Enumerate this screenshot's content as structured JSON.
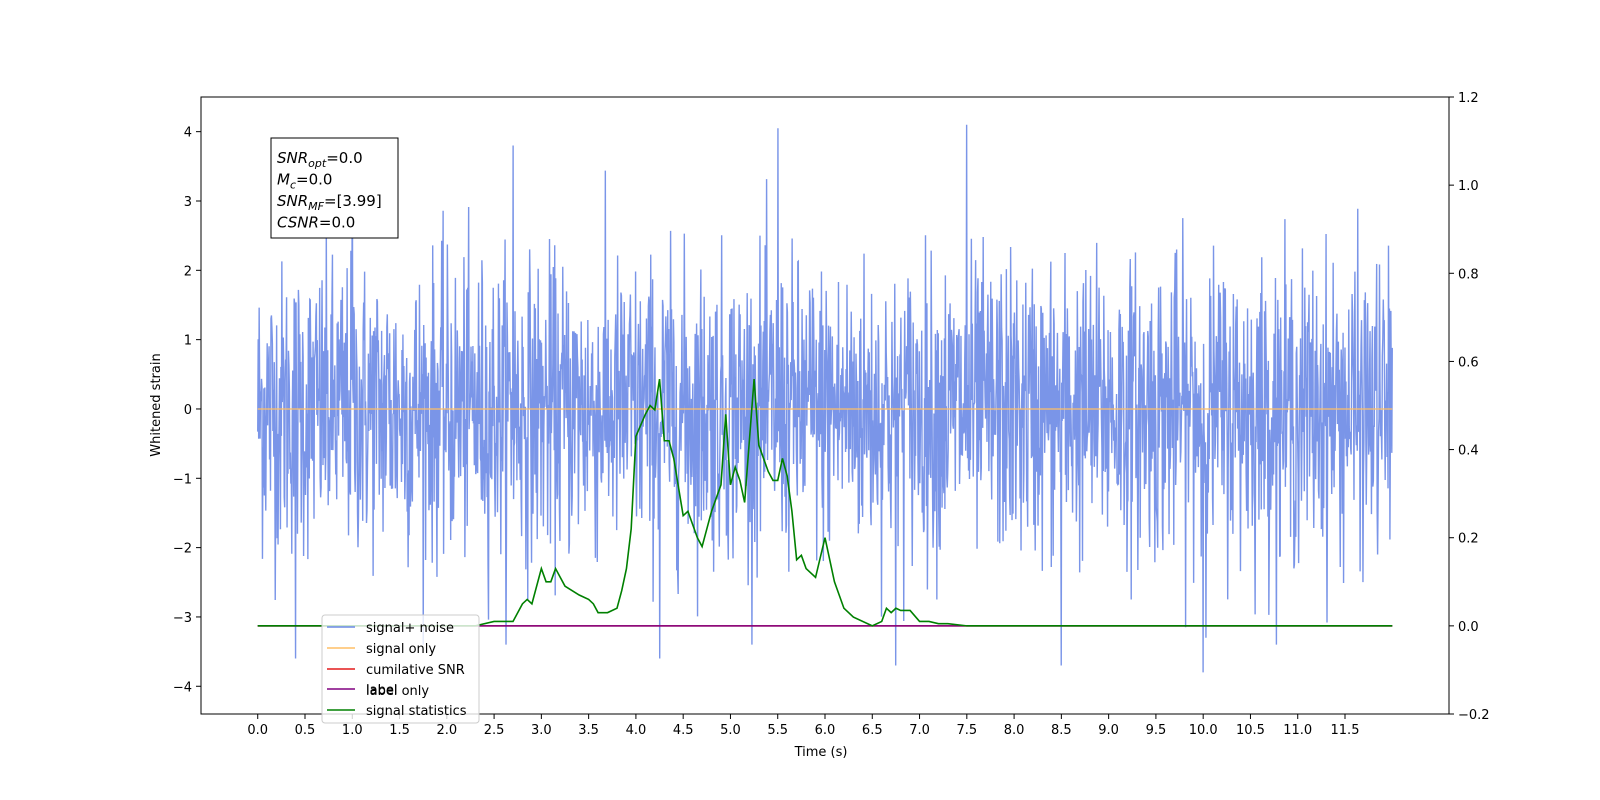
{
  "chart_data": {
    "type": "line",
    "xlabel": "Time (s)",
    "ylabel": "Whitened strain",
    "x_ticks": [
      "0.0",
      "0.5",
      "1.0",
      "1.5",
      "2.0",
      "2.5",
      "3.0",
      "3.5",
      "4.0",
      "4.5",
      "5.0",
      "5.5",
      "6.0",
      "6.5",
      "7.0",
      "7.5",
      "8.0",
      "8.5",
      "9.0",
      "9.5",
      "10.0",
      "10.5",
      "11.0",
      "11.5"
    ],
    "y_left_ticks": [
      "−4",
      "−3",
      "−2",
      "−1",
      "0",
      "1",
      "2",
      "3",
      "4"
    ],
    "y_right_ticks": [
      "−0.2",
      "0.0",
      "0.2",
      "0.4",
      "0.6",
      "0.8",
      "1.0",
      "1.2"
    ],
    "xlim": [
      -0.6,
      12.6
    ],
    "ylim_left": [
      -4.4,
      4.5
    ],
    "ylim_right": [
      -0.2,
      1.2
    ],
    "grid": false,
    "legend_position": "lower-left",
    "annotation": {
      "lines": [
        {
          "sym": "SNR",
          "sub": "opt",
          "val": "=0.0"
        },
        {
          "sym": "M",
          "sub": "c",
          "val": "=0.0"
        },
        {
          "sym": "SNR",
          "sub": "MF",
          "val": "=[3.99]"
        },
        {
          "sym": "CSNR",
          "sub": "",
          "val": "=0.0"
        }
      ]
    },
    "series": [
      {
        "name": "signal+ noise",
        "color": "#6b8ae6",
        "axis": "left",
        "x_range": [
          0.0,
          12.0
        ],
        "amplitude": "noise, approx. std 1, range -3.8 to 4.1",
        "peaks": [
          [
            1.0,
            3.8
          ],
          [
            2.7,
            3.8
          ],
          [
            5.5,
            4.05
          ],
          [
            7.5,
            4.1
          ],
          [
            10.0,
            -3.8
          ],
          [
            8.5,
            -3.7
          ],
          [
            4.25,
            -3.6
          ],
          [
            6.75,
            -3.7
          ],
          [
            0.4,
            -3.6
          ]
        ]
      },
      {
        "name": "signal only",
        "color": "#ffbf66",
        "axis": "left",
        "x": [
          0.0,
          12.0
        ],
        "y": [
          0.0,
          0.0
        ]
      },
      {
        "name": "cumilative SNR",
        "color": "#e31a1c",
        "axis": "right",
        "x": [
          0.0,
          12.0
        ],
        "y": [
          0.0,
          0.0
        ]
      },
      {
        "name": "label",
        "color": "#800080",
        "axis": "right",
        "x": [
          0.0,
          12.0
        ],
        "y": [
          0.0,
          0.0
        ]
      },
      {
        "name": "label only",
        "color": "#ffffff",
        "axis": "right",
        "x": [],
        "y": []
      },
      {
        "name": "signal statistics",
        "color": "#008000",
        "axis": "right",
        "x": [
          0.0,
          0.1,
          0.5,
          1.0,
          1.5,
          2.0,
          2.3,
          2.5,
          2.7,
          2.8,
          2.85,
          2.9,
          3.0,
          3.05,
          3.1,
          3.15,
          3.2,
          3.25,
          3.4,
          3.5,
          3.55,
          3.6,
          3.7,
          3.8,
          3.85,
          3.9,
          3.95,
          4.0,
          4.1,
          4.15,
          4.2,
          4.25,
          4.3,
          4.35,
          4.4,
          4.5,
          4.55,
          4.6,
          4.65,
          4.7,
          4.75,
          4.8,
          4.9,
          4.95,
          5.0,
          5.05,
          5.1,
          5.15,
          5.2,
          5.25,
          5.3,
          5.4,
          5.45,
          5.5,
          5.55,
          5.6,
          5.65,
          5.7,
          5.75,
          5.8,
          5.9,
          6.0,
          6.1,
          6.2,
          6.3,
          6.5,
          6.6,
          6.65,
          6.7,
          6.75,
          6.8,
          6.9,
          7.0,
          7.1,
          7.2,
          7.3,
          7.5,
          8.0,
          9.0,
          10.0,
          11.0,
          12.0
        ],
        "y": [
          0.0,
          0.0,
          0.0,
          0.0,
          0.0,
          0.0,
          0.0,
          0.01,
          0.01,
          0.05,
          0.06,
          0.05,
          0.13,
          0.1,
          0.1,
          0.13,
          0.11,
          0.09,
          0.07,
          0.06,
          0.05,
          0.03,
          0.03,
          0.04,
          0.08,
          0.13,
          0.22,
          0.43,
          0.48,
          0.5,
          0.49,
          0.56,
          0.42,
          0.42,
          0.38,
          0.25,
          0.26,
          0.23,
          0.2,
          0.18,
          0.22,
          0.26,
          0.32,
          0.48,
          0.32,
          0.36,
          0.33,
          0.28,
          0.42,
          0.56,
          0.41,
          0.35,
          0.33,
          0.33,
          0.38,
          0.34,
          0.26,
          0.15,
          0.16,
          0.13,
          0.11,
          0.2,
          0.1,
          0.04,
          0.02,
          0.0,
          0.01,
          0.04,
          0.03,
          0.04,
          0.035,
          0.035,
          0.01,
          0.01,
          0.005,
          0.005,
          0.0,
          0.0,
          0.0,
          0.0,
          0.0,
          0.0
        ]
      }
    ]
  }
}
